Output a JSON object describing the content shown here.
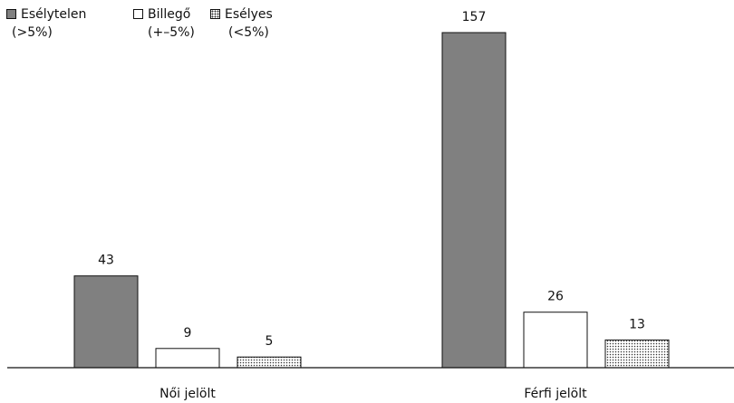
{
  "chart_data": {
    "type": "bar",
    "title": "",
    "xlabel": "",
    "ylabel": "",
    "categories": [
      "Női jelölt",
      "Férfi jelölt"
    ],
    "series": [
      {
        "name": "Esélytelen (>5%)",
        "name_line1": "Esélytelen",
        "name_line2": "(>5%)",
        "fill": "#808080",
        "pattern": "solid",
        "values": [
          43,
          157
        ]
      },
      {
        "name": "Billegő (+–5%)",
        "name_line1": "Billegő",
        "name_line2": "(+–5%)",
        "fill": "#ffffff",
        "pattern": "solid",
        "values": [
          9,
          26
        ]
      },
      {
        "name": "Esélyes (<5%)",
        "name_line1": "Esélyes",
        "name_line2": "(<5%)",
        "fill": "#ffffff",
        "pattern": "dotted",
        "values": [
          5,
          13
        ]
      }
    ],
    "ylim": [
      0,
      170
    ],
    "legend_position": "top-left",
    "data_labels": true,
    "grid": false,
    "axis_color": "#111111"
  }
}
